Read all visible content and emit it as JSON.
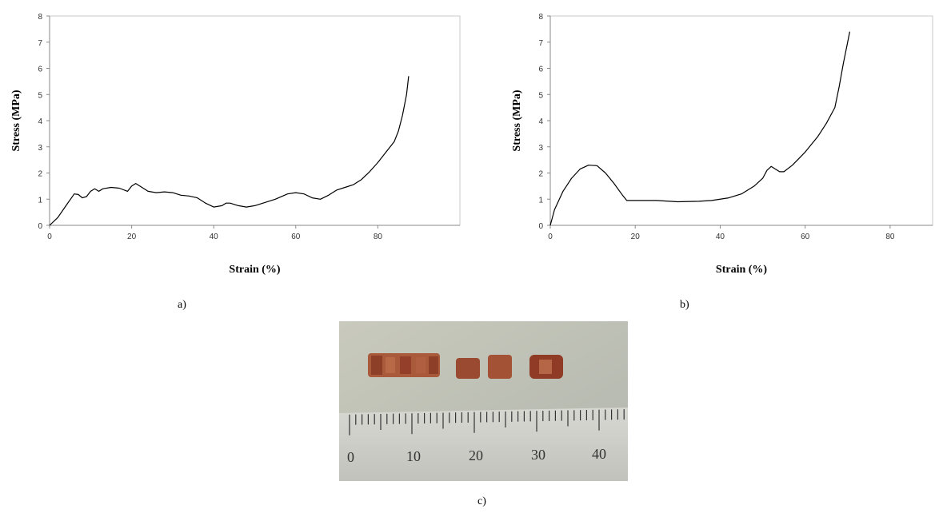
{
  "chart_data": [
    {
      "type": "line",
      "panel_label": "a)",
      "xlabel": "Strain (%)",
      "ylabel": "Stress (MPa)",
      "xlim": [
        0,
        100
      ],
      "ylim": [
        0,
        8
      ],
      "xticks": [
        0,
        20,
        40,
        60,
        80
      ],
      "yticks": [
        0,
        1,
        2,
        3,
        4,
        5,
        6,
        7,
        8
      ],
      "grid": false,
      "series": [
        {
          "points": [
            [
              0,
              0
            ],
            [
              2,
              0.3
            ],
            [
              4,
              0.75
            ],
            [
              6,
              1.2
            ],
            [
              7,
              1.18
            ],
            [
              8,
              1.05
            ],
            [
              9,
              1.1
            ],
            [
              10,
              1.3
            ],
            [
              11,
              1.4
            ],
            [
              12,
              1.3
            ],
            [
              13,
              1.4
            ],
            [
              15,
              1.45
            ],
            [
              17,
              1.42
            ],
            [
              19,
              1.3
            ],
            [
              20,
              1.5
            ],
            [
              21,
              1.6
            ],
            [
              22,
              1.5
            ],
            [
              24,
              1.3
            ],
            [
              26,
              1.25
            ],
            [
              28,
              1.28
            ],
            [
              30,
              1.25
            ],
            [
              32,
              1.15
            ],
            [
              34,
              1.12
            ],
            [
              36,
              1.05
            ],
            [
              38,
              0.85
            ],
            [
              40,
              0.7
            ],
            [
              42,
              0.75
            ],
            [
              43,
              0.85
            ],
            [
              44,
              0.85
            ],
            [
              46,
              0.75
            ],
            [
              48,
              0.7
            ],
            [
              50,
              0.75
            ],
            [
              52,
              0.85
            ],
            [
              55,
              1.0
            ],
            [
              58,
              1.2
            ],
            [
              60,
              1.25
            ],
            [
              62,
              1.2
            ],
            [
              64,
              1.05
            ],
            [
              66,
              1.0
            ],
            [
              68,
              1.15
            ],
            [
              70,
              1.35
            ],
            [
              72,
              1.45
            ],
            [
              74,
              1.55
            ],
            [
              76,
              1.75
            ],
            [
              78,
              2.05
            ],
            [
              80,
              2.4
            ],
            [
              82,
              2.8
            ],
            [
              84,
              3.2
            ],
            [
              85,
              3.6
            ],
            [
              86,
              4.2
            ],
            [
              87,
              5.0
            ],
            [
              87.5,
              5.7
            ]
          ]
        }
      ]
    },
    {
      "type": "line",
      "panel_label": "b)",
      "xlabel": "Strain (%)",
      "ylabel": "Stress (MPa)",
      "xlim": [
        0,
        90
      ],
      "ylim": [
        0,
        8
      ],
      "xticks": [
        0,
        20,
        40,
        60,
        80
      ],
      "yticks": [
        0,
        1,
        2,
        3,
        4,
        5,
        6,
        7,
        8
      ],
      "grid": false,
      "series": [
        {
          "points": [
            [
              0,
              0
            ],
            [
              1,
              0.6
            ],
            [
              3,
              1.3
            ],
            [
              5,
              1.8
            ],
            [
              7,
              2.15
            ],
            [
              9,
              2.3
            ],
            [
              11,
              2.28
            ],
            [
              13,
              2.0
            ],
            [
              15,
              1.6
            ],
            [
              17,
              1.15
            ],
            [
              18,
              0.95
            ],
            [
              20,
              0.95
            ],
            [
              25,
              0.95
            ],
            [
              30,
              0.9
            ],
            [
              35,
              0.92
            ],
            [
              38,
              0.95
            ],
            [
              42,
              1.05
            ],
            [
              45,
              1.2
            ],
            [
              48,
              1.5
            ],
            [
              50,
              1.8
            ],
            [
              51,
              2.1
            ],
            [
              52,
              2.25
            ],
            [
              53,
              2.15
            ],
            [
              54,
              2.05
            ],
            [
              55,
              2.05
            ],
            [
              57,
              2.3
            ],
            [
              60,
              2.8
            ],
            [
              63,
              3.4
            ],
            [
              65,
              3.9
            ],
            [
              67,
              4.5
            ],
            [
              68,
              5.3
            ],
            [
              69,
              6.2
            ],
            [
              70,
              7.0
            ],
            [
              70.5,
              7.4
            ]
          ]
        }
      ]
    }
  ],
  "photo": {
    "panel_label": "c)",
    "ruler_labels": [
      "0",
      "10",
      "20",
      "30",
      "40"
    ]
  }
}
